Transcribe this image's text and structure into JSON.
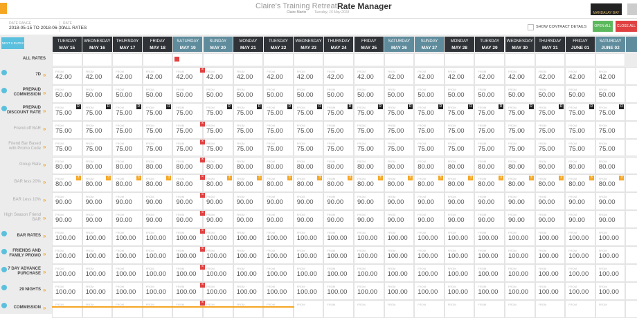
{
  "header": {
    "title": "Claire's Training Retreat",
    "section": "Rate Manager",
    "user": "Claire Martin",
    "date": "Tuesday, 15 May 2018",
    "date_range_label": "DATE RANGE",
    "date_range": "2018-05-15 TO 2018-06-30",
    "rate_label": "RATE",
    "rate": "ALL RATES",
    "show_contract": "SHOW CONTRACT DETAILS",
    "open_all": "OPEN ALL",
    "close_all": "CLOSE ALL",
    "logo": "MANDALAY BAY"
  },
  "next_button": "NEXT 6 RATES",
  "all_rates": "ALL RATES",
  "from_label": "FROM",
  "columns": [
    {
      "day": "TUESDAY",
      "date": "MAY 15"
    },
    {
      "day": "WEDNESDAY",
      "date": "MAY 16"
    },
    {
      "day": "THURSDAY",
      "date": "MAY 17"
    },
    {
      "day": "FRIDAY",
      "date": "MAY 18"
    },
    {
      "day": "SATURDAY",
      "date": "MAY 19",
      "weekend": true
    },
    {
      "day": "SUNDAY",
      "date": "MAY 20",
      "weekend": true
    },
    {
      "day": "MONDAY",
      "date": "MAY 21"
    },
    {
      "day": "TUESDAY",
      "date": "MAY 22"
    },
    {
      "day": "WEDNESDAY",
      "date": "MAY 23"
    },
    {
      "day": "THURSDAY",
      "date": "MAY 24"
    },
    {
      "day": "FRIDAY",
      "date": "MAY 25"
    },
    {
      "day": "SATURDAY",
      "date": "MAY 26",
      "weekend": true
    },
    {
      "day": "SUNDAY",
      "date": "MAY 27",
      "weekend": true
    },
    {
      "day": "MONDAY",
      "date": "MAY 28"
    },
    {
      "day": "TUESDAY",
      "date": "MAY 29"
    },
    {
      "day": "WEDNESDAY",
      "date": "MAY 30"
    },
    {
      "day": "THURSDAY",
      "date": "MAY 31"
    },
    {
      "day": "FRIDAY",
      "date": "JUNE 01"
    },
    {
      "day": "SATURDAY",
      "date": "JUNE 02",
      "weekend": true
    }
  ],
  "rows": [
    {
      "label": "7D",
      "values": [
        "42.00",
        "42.00",
        "42.00",
        "42.00",
        "42.00",
        "42.00",
        "42.00",
        "42.00",
        "42.00",
        "42.00",
        "42.00",
        "42.00",
        "42.00",
        "42.00",
        "42.00",
        "42.00",
        "42.00",
        "42.00",
        "42.00"
      ]
    },
    {
      "label": "PREPAID COMMISSION",
      "values": [
        "50.00",
        "50.00",
        "50.00",
        "50.00",
        "50.00",
        "50.00",
        "50.00",
        "50.00",
        "50.00",
        "50.00",
        "50.00",
        "50.00",
        "50.00",
        "50.00",
        "50.00",
        "50.00",
        "50.00",
        "50.00",
        "50.00"
      ]
    },
    {
      "label": "PREPAID DISCOUNT RATE",
      "badge": "R",
      "values": [
        "75.00",
        "75.00",
        "75.00",
        "75.00",
        "75.00",
        "75.00",
        "75.00",
        "75.00",
        "75.00",
        "75.00",
        "75.00",
        "75.00",
        "75.00",
        "75.00",
        "75.00",
        "75.00",
        "75.00",
        "75.00",
        "75.00"
      ]
    },
    {
      "label": "Friend off BAR",
      "child": true,
      "values": [
        "75.00",
        "75.00",
        "75.00",
        "75.00",
        "75.00",
        "75.00",
        "75.00",
        "75.00",
        "75.00",
        "75.00",
        "75.00",
        "75.00",
        "75.00",
        "75.00",
        "75.00",
        "75.00",
        "75.00",
        "75.00",
        "75.00"
      ]
    },
    {
      "label": "Friend Bar Based with Promo Code",
      "child": true,
      "values": [
        "75.00",
        "75.00",
        "75.00",
        "75.00",
        "75.00",
        "75.00",
        "75.00",
        "75.00",
        "75.00",
        "75.00",
        "75.00",
        "75.00",
        "75.00",
        "75.00",
        "75.00",
        "75.00",
        "75.00",
        "75.00",
        "75.00"
      ]
    },
    {
      "label": "Group Rate",
      "child": true,
      "values": [
        "80.00",
        "80.00",
        "80.00",
        "80.00",
        "80.00",
        "80.00",
        "80.00",
        "80.00",
        "80.00",
        "80.00",
        "80.00",
        "80.00",
        "80.00",
        "80.00",
        "80.00",
        "80.00",
        "80.00",
        "80.00",
        "80.00"
      ]
    },
    {
      "label": "BAR less 20%",
      "child": true,
      "badge": "3",
      "values": [
        "80.00",
        "80.00",
        "80.00",
        "80.00",
        "80.00",
        "80.00",
        "80.00",
        "80.00",
        "80.00",
        "80.00",
        "80.00",
        "80.00",
        "80.00",
        "80.00",
        "80.00",
        "80.00",
        "80.00",
        "80.00",
        "80.00"
      ]
    },
    {
      "label": "BAR Less 10%",
      "child": true,
      "values": [
        "90.00",
        "90.00",
        "90.00",
        "90.00",
        "90.00",
        "90.00",
        "90.00",
        "90.00",
        "90.00",
        "90.00",
        "90.00",
        "90.00",
        "90.00",
        "90.00",
        "90.00",
        "90.00",
        "90.00",
        "90.00",
        "90.00"
      ]
    },
    {
      "label": "High Season Friend BAR",
      "child": true,
      "values": [
        "90.00",
        "90.00",
        "90.00",
        "90.00",
        "90.00",
        "90.00",
        "90.00",
        "90.00",
        "90.00",
        "90.00",
        "90.00",
        "90.00",
        "90.00",
        "90.00",
        "90.00",
        "90.00",
        "90.00",
        "90.00",
        "90.00"
      ]
    },
    {
      "label": "BAR RATES",
      "values": [
        "100.00",
        "100.00",
        "100.00",
        "100.00",
        "100.00",
        "100.00",
        "100.00",
        "100.00",
        "100.00",
        "100.00",
        "100.00",
        "100.00",
        "100.00",
        "100.00",
        "100.00",
        "100.00",
        "100.00",
        "100.00",
        "100.00"
      ]
    },
    {
      "label": "FRIENDS AND FAMILY PROMO",
      "values": [
        "100.00",
        "100.00",
        "100.00",
        "100.00",
        "100.00",
        "100.00",
        "100.00",
        "100.00",
        "100.00",
        "100.00",
        "100.00",
        "100.00",
        "100.00",
        "100.00",
        "100.00",
        "100.00",
        "100.00",
        "100.00",
        "100.00"
      ]
    },
    {
      "label": "7 DAY ADVANCE PURCHASE",
      "values": [
        "100.00",
        "100.00",
        "100.00",
        "100.00",
        "100.00",
        "100.00",
        "100.00",
        "100.00",
        "100.00",
        "100.00",
        "100.00",
        "100.00",
        "100.00",
        "100.00",
        "100.00",
        "100.00",
        "100.00",
        "100.00",
        "100.00"
      ]
    },
    {
      "label": "29 NIGHTS",
      "values": [
        "100.00",
        "100.00",
        "100.00",
        "100.00",
        "100.00",
        "100.00",
        "100.00",
        "100.00",
        "100.00",
        "100.00",
        "100.00",
        "100.00",
        "100.00",
        "100.00",
        "100.00",
        "100.00",
        "100.00",
        "100.00",
        "100.00"
      ]
    },
    {
      "label": "COMMISSION",
      "values": []
    }
  ]
}
